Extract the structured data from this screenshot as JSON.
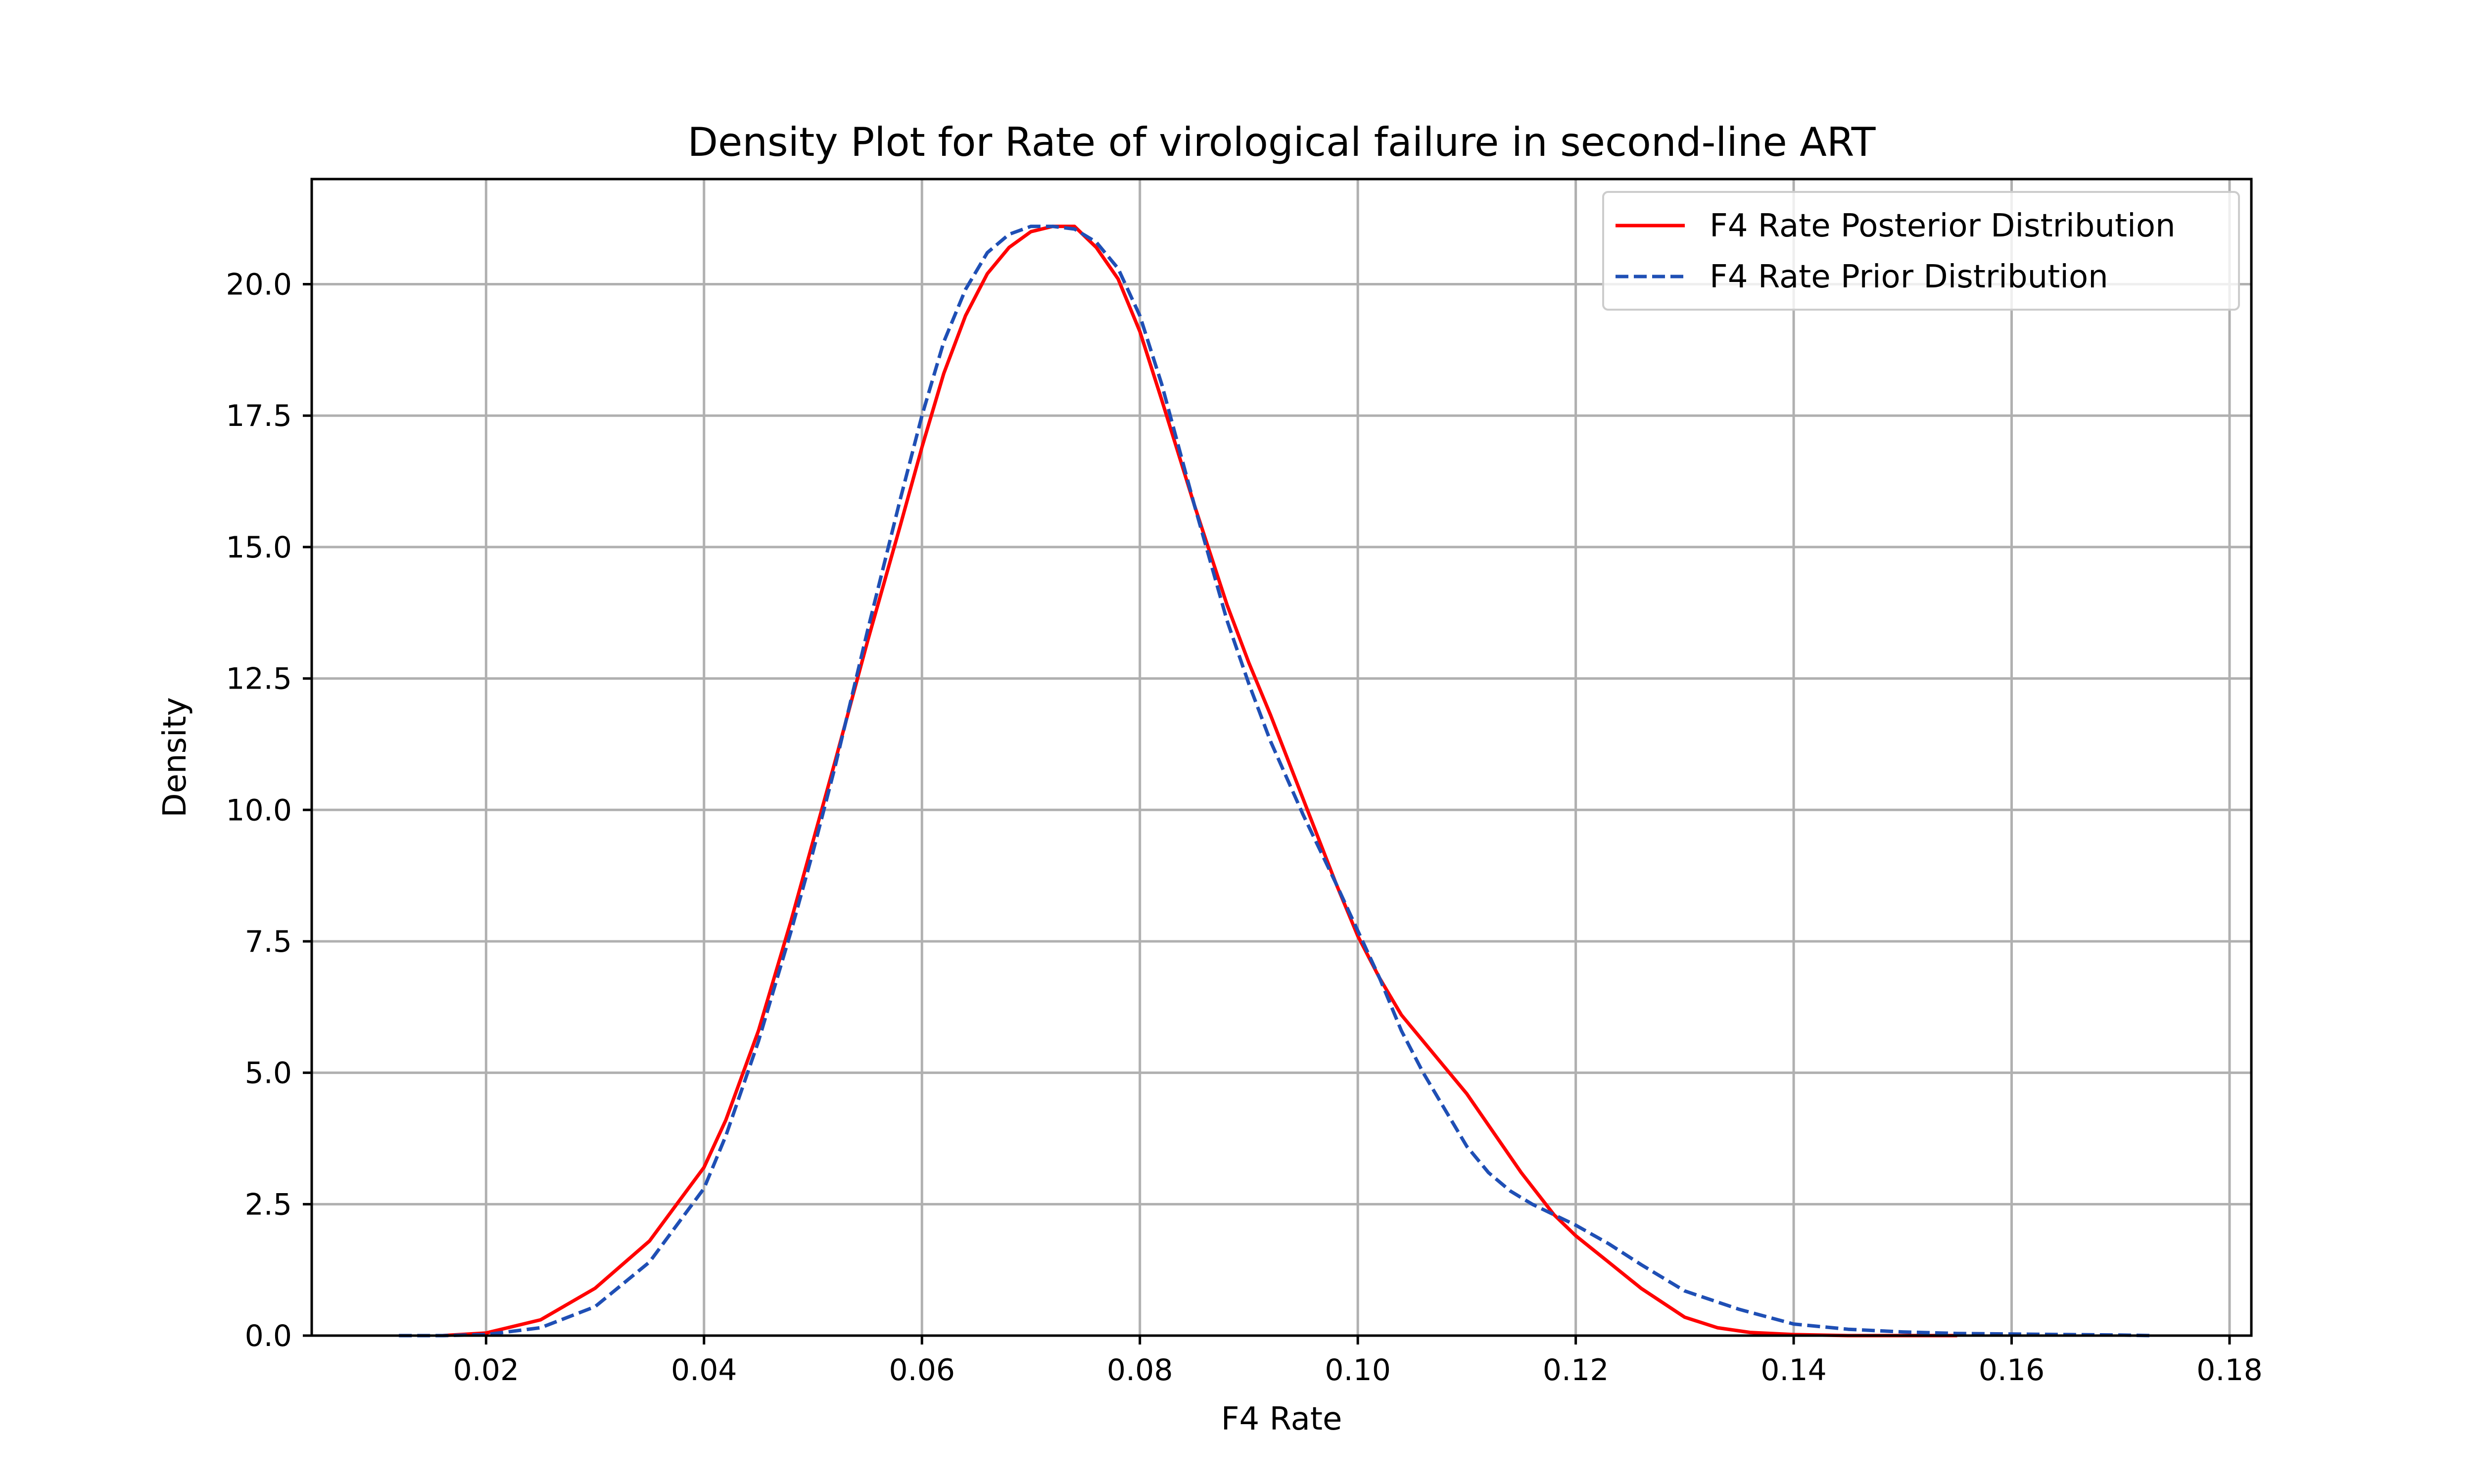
{
  "chart_data": {
    "type": "line",
    "title": "Density Plot for Rate of virological failure in second-line ART",
    "xlabel": "F4 Rate",
    "ylabel": "Density",
    "xlim": [
      0.004,
      0.182
    ],
    "ylim": [
      0,
      22
    ],
    "xticks": [
      0.02,
      0.04,
      0.06,
      0.08,
      0.1,
      0.12,
      0.14,
      0.16,
      0.18
    ],
    "xtick_labels": [
      "0.02",
      "0.04",
      "0.06",
      "0.08",
      "0.10",
      "0.12",
      "0.14",
      "0.16",
      "0.18"
    ],
    "yticks": [
      0,
      2.5,
      5,
      7.5,
      10,
      12.5,
      15,
      17.5,
      20
    ],
    "ytick_labels": [
      "0.0",
      "2.5",
      "5.0",
      "7.5",
      "10.0",
      "12.5",
      "15.0",
      "17.5",
      "20.0"
    ],
    "grid": true,
    "legend_position": "top-right",
    "series": [
      {
        "name": "F4 Rate Posterior Distribution",
        "color": "#ff0000",
        "dash": "solid",
        "x": [
          0.016,
          0.02,
          0.025,
          0.03,
          0.035,
          0.04,
          0.042,
          0.045,
          0.048,
          0.05,
          0.052,
          0.055,
          0.058,
          0.06,
          0.062,
          0.064,
          0.066,
          0.068,
          0.07,
          0.072,
          0.074,
          0.076,
          0.078,
          0.08,
          0.082,
          0.085,
          0.088,
          0.09,
          0.092,
          0.095,
          0.098,
          0.1,
          0.102,
          0.104,
          0.106,
          0.108,
          0.11,
          0.112,
          0.115,
          0.118,
          0.12,
          0.123,
          0.126,
          0.13,
          0.133,
          0.136,
          0.14,
          0.145,
          0.15,
          0.155
        ],
        "y": [
          0.0,
          0.05,
          0.3,
          0.9,
          1.8,
          3.2,
          4.1,
          5.8,
          7.9,
          9.4,
          10.9,
          13.2,
          15.4,
          16.9,
          18.3,
          19.4,
          20.2,
          20.7,
          21.0,
          21.1,
          21.1,
          20.7,
          20.1,
          19.1,
          17.8,
          15.8,
          13.9,
          12.8,
          11.8,
          10.2,
          8.6,
          7.6,
          6.8,
          6.1,
          5.6,
          5.1,
          4.6,
          4.0,
          3.1,
          2.3,
          1.9,
          1.4,
          0.9,
          0.35,
          0.15,
          0.06,
          0.02,
          0.0,
          0.0,
          0.0
        ]
      },
      {
        "name": "F4 Rate Prior Distribution",
        "color": "#1f4fb5",
        "dash": "dashed",
        "x": [
          0.012,
          0.016,
          0.02,
          0.025,
          0.03,
          0.035,
          0.04,
          0.042,
          0.045,
          0.048,
          0.05,
          0.052,
          0.055,
          0.058,
          0.06,
          0.062,
          0.064,
          0.066,
          0.068,
          0.07,
          0.072,
          0.074,
          0.076,
          0.078,
          0.08,
          0.082,
          0.085,
          0.088,
          0.09,
          0.092,
          0.095,
          0.098,
          0.1,
          0.102,
          0.104,
          0.106,
          0.108,
          0.11,
          0.112,
          0.114,
          0.116,
          0.118,
          0.12,
          0.123,
          0.126,
          0.13,
          0.135,
          0.14,
          0.145,
          0.15,
          0.155,
          0.16,
          0.165,
          0.17,
          0.173
        ],
        "y": [
          0.0,
          0.0,
          0.02,
          0.15,
          0.55,
          1.4,
          2.8,
          3.8,
          5.6,
          7.7,
          9.2,
          10.8,
          13.4,
          15.9,
          17.5,
          18.9,
          19.9,
          20.6,
          20.95,
          21.1,
          21.1,
          21.05,
          20.8,
          20.3,
          19.4,
          18.1,
          15.8,
          13.6,
          12.4,
          11.3,
          9.9,
          8.6,
          7.7,
          6.8,
          5.8,
          5.0,
          4.3,
          3.6,
          3.1,
          2.75,
          2.5,
          2.3,
          2.1,
          1.75,
          1.35,
          0.85,
          0.5,
          0.22,
          0.12,
          0.07,
          0.04,
          0.03,
          0.02,
          0.01,
          0.0
        ]
      }
    ]
  }
}
